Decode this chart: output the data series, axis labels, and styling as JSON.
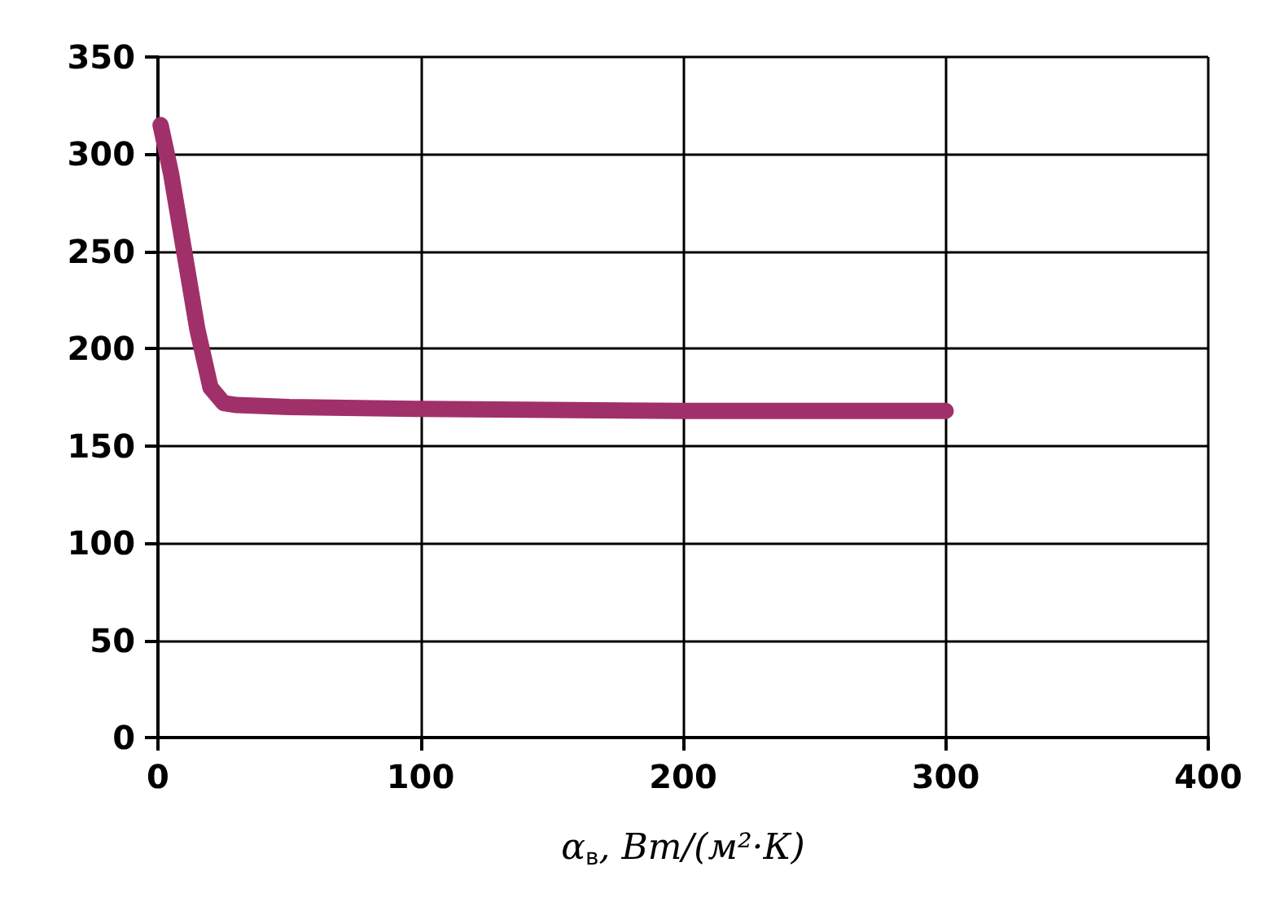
{
  "chart_data": {
    "type": "line",
    "xlabel": "α$_{в}$, Вт/(м²·К)",
    "series": [
      {
        "color": "#a0306a",
        "x": [
          1,
          5,
          10,
          15,
          20,
          25,
          30,
          50,
          100,
          200,
          300
        ],
        "values": [
          315,
          290,
          250,
          210,
          180,
          172,
          171,
          170,
          169,
          168,
          168
        ]
      }
    ],
    "xlim": [
      0,
      400
    ],
    "xticks": [
      0,
      100,
      200,
      300,
      400
    ],
    "ylim": [
      0,
      350
    ],
    "yticks": [
      0,
      50,
      100,
      150,
      200,
      250,
      300,
      350
    ],
    "grid": true,
    "marker": "none",
    "line_style": "solid"
  }
}
